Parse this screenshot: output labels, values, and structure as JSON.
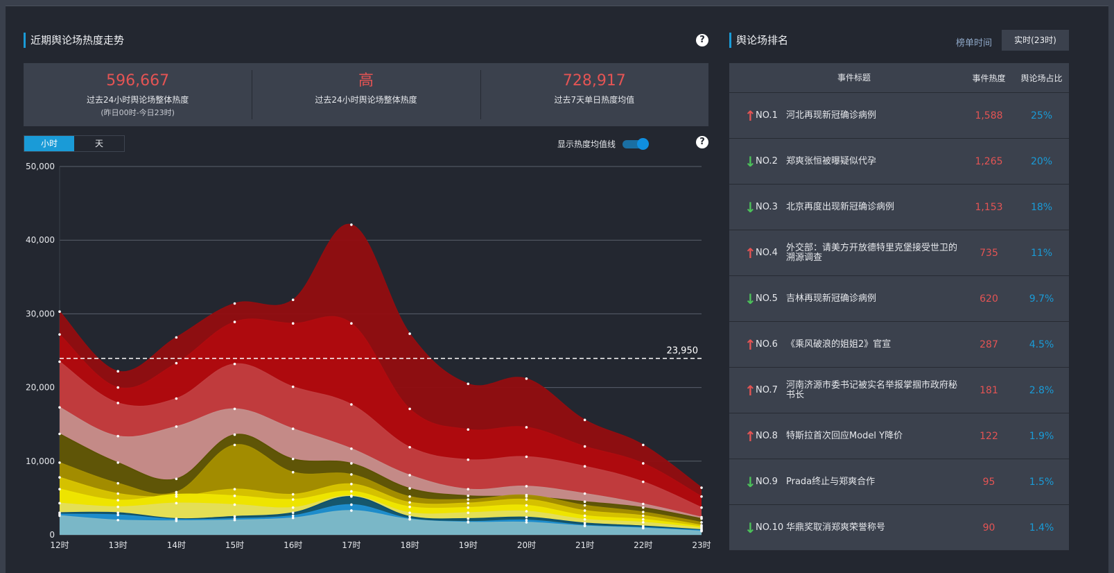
{
  "left_panel": {
    "title": "近期舆论场热度走势",
    "stats": [
      {
        "value": "596,667",
        "label": "过去24小时舆论场整体热度",
        "sub": "(昨日00时-今日23时)"
      },
      {
        "value": "高",
        "label": "过去24小时舆论场整体热度",
        "sub": ""
      },
      {
        "value": "728,917",
        "label": "过去7天单日热度均值",
        "sub": ""
      }
    ],
    "toggle": {
      "hour": "小时",
      "day": "天",
      "selected": "小时"
    },
    "avg_switch_label": "显示热度均值线",
    "avg_switch_on": true
  },
  "chart_data": {
    "type": "area",
    "stacked": true,
    "categories": [
      "12时",
      "13时",
      "14时",
      "15时",
      "16时",
      "17时",
      "18时",
      "19时",
      "20时",
      "21时",
      "22时",
      "23时"
    ],
    "ylim": [
      0,
      50000
    ],
    "yticks": [
      "0",
      "10,000",
      "20,000",
      "30,000",
      "40,000",
      "50,000"
    ],
    "avg_line": {
      "value": 23950,
      "label": "23,950"
    },
    "grid": true,
    "stack_totals": [
      {
        "color": "#7fb9c6",
        "values": [
          2600,
          2000,
          1900,
          2000,
          2300,
          3300,
          2100,
          1700,
          1700,
          1200,
          900,
          500
        ]
      },
      {
        "color": "#1f8fd0",
        "values": [
          2800,
          2700,
          2100,
          2200,
          2600,
          4100,
          2200,
          1800,
          2000,
          1300,
          1000,
          600
        ]
      },
      {
        "color": "#0b4f6e",
        "values": [
          3000,
          3000,
          2200,
          2500,
          3000,
          5200,
          2500,
          2200,
          2400,
          1600,
          1200,
          700
        ]
      },
      {
        "color": "#e3de5a",
        "values": [
          4300,
          3800,
          4300,
          4100,
          3700,
          5300,
          3000,
          3000,
          3200,
          2100,
          1700,
          900
        ]
      },
      {
        "color": "#efe600",
        "values": [
          6200,
          4700,
          5500,
          5300,
          4800,
          5900,
          3800,
          3700,
          4000,
          2600,
          2100,
          1100
        ]
      },
      {
        "color": "#d8c400",
        "values": [
          7800,
          5600,
          5200,
          6200,
          5500,
          6900,
          4400,
          4300,
          4800,
          3300,
          2600,
          1300
        ]
      },
      {
        "color": "#a58f00",
        "values": [
          9800,
          7000,
          5800,
          12200,
          8500,
          8200,
          5200,
          4800,
          5400,
          4000,
          3100,
          1700
        ]
      },
      {
        "color": "#5a5200",
        "values": [
          13700,
          9800,
          7600,
          13600,
          10300,
          9700,
          6300,
          5300,
          5200,
          4500,
          3700,
          2200
        ]
      },
      {
        "color": "#c48e8b",
        "values": [
          17300,
          13400,
          14700,
          17100,
          14400,
          11700,
          8100,
          6200,
          6600,
          5600,
          4200,
          2400
        ]
      },
      {
        "color": "#c13e40",
        "values": [
          23500,
          17900,
          18500,
          23200,
          20100,
          17700,
          11900,
          10200,
          10600,
          9300,
          7200,
          3700
        ]
      },
      {
        "color": "#b00b0f",
        "values": [
          27200,
          20000,
          23300,
          28900,
          28700,
          28700,
          17100,
          14300,
          14600,
          12000,
          9700,
          5200
        ]
      },
      {
        "color": "#930d10",
        "values": [
          30300,
          22200,
          26800,
          31400,
          31900,
          42100,
          27300,
          20500,
          21200,
          15600,
          12200,
          6400
        ]
      }
    ]
  },
  "right_panel": {
    "title": "舆论场排名",
    "time_label": "榜单时间",
    "time_button": "实时(23时)",
    "columns": [
      "事件标题",
      "事件热度",
      "舆论场占比"
    ],
    "rows": [
      {
        "rank": "NO.1",
        "trend": "up",
        "title": "河北再现新冠确诊病例",
        "heat": "1,588",
        "share": "25%"
      },
      {
        "rank": "NO.2",
        "trend": "down",
        "title": "郑爽张恒被曝疑似代孕",
        "heat": "1,265",
        "share": "20%"
      },
      {
        "rank": "NO.3",
        "trend": "down",
        "title": "北京再度出现新冠确诊病例",
        "heat": "1,153",
        "share": "18%"
      },
      {
        "rank": "NO.4",
        "trend": "up",
        "title": "外交部：请美方开放德特里克堡接受世卫的溯源调查",
        "heat": "735",
        "share": "11%"
      },
      {
        "rank": "NO.5",
        "trend": "down",
        "title": "吉林再现新冠确诊病例",
        "heat": "620",
        "share": "9.7%"
      },
      {
        "rank": "NO.6",
        "trend": "up",
        "title": "《乘风破浪的姐姐2》官宣",
        "heat": "287",
        "share": "4.5%"
      },
      {
        "rank": "NO.7",
        "trend": "up",
        "title": "河南济源市委书记被实名举报掌掴市政府秘书长",
        "heat": "181",
        "share": "2.8%"
      },
      {
        "rank": "NO.8",
        "trend": "up",
        "title": "特斯拉首次回应Model Y降价",
        "heat": "122",
        "share": "1.9%"
      },
      {
        "rank": "NO.9",
        "trend": "down",
        "title": "Prada终止与郑爽合作",
        "heat": "95",
        "share": "1.5%"
      },
      {
        "rank": "NO.10",
        "trend": "down",
        "title": "华鼎奖取消郑爽荣誉称号",
        "heat": "90",
        "share": "1.4%"
      }
    ]
  },
  "icons": {
    "help": "help-icon",
    "trend_up": "arrow-up-icon",
    "trend_down": "arrow-down-icon"
  }
}
